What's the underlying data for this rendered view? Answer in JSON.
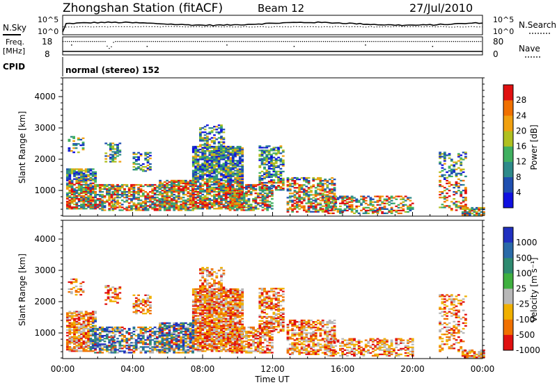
{
  "header": {
    "title": "Zhongshan Station (fitACF)",
    "beam": "Beam 12",
    "date": "27/Jul/2010"
  },
  "top_panels": {
    "nsky_label": "N.Sky",
    "nsearch_label": "N.Search",
    "nsky_ticks": [
      "10^5",
      "10^0"
    ],
    "nsearch_ticks": [
      "10^5",
      "10^0"
    ],
    "freq_label_1": "Freq.",
    "freq_label_2": "[MHz]",
    "freq_ticks": [
      "18",
      "8"
    ],
    "nave_label": "Nave",
    "nave_ticks": [
      "80",
      "0"
    ],
    "cpid_label": "CPID",
    "cpid_text": "normal (stereo) 152"
  },
  "chart_data": [
    {
      "type": "heatmap",
      "name": "power",
      "ylabel": "Slant Range [km]",
      "yticks": [
        1000,
        2000,
        3000,
        4000
      ],
      "ylim": [
        180,
        4600
      ],
      "colorbar_label": "Power [dB]",
      "colorbar_ticks": [
        "4",
        "8",
        "12",
        "16",
        "20",
        "24",
        "28"
      ],
      "colors": [
        "#1010e0",
        "#1f4fb0",
        "#2e8a8a",
        "#40b060",
        "#b0c020",
        "#f0a010",
        "#f07000",
        "#e01010"
      ]
    },
    {
      "type": "heatmap",
      "name": "velocity",
      "ylabel": "Slant Range [km]",
      "yticks": [
        1000,
        2000,
        3000,
        4000
      ],
      "ylim": [
        180,
        4600
      ],
      "colorbar_label": "Velocity [m s⁻¹]",
      "colorbar_ticks": [
        "1000",
        "500",
        "100",
        "25",
        "-25",
        "-100",
        "-500",
        "-1000"
      ],
      "colors": [
        "#2030c0",
        "#2a6aa8",
        "#2e8a70",
        "#40b040",
        "#b8b8b8",
        "#f0b000",
        "#f07000",
        "#e01010"
      ]
    }
  ],
  "x_axis": {
    "ticks": [
      "00:00",
      "04:00",
      "08:00",
      "12:00",
      "16:00",
      "20:00",
      "00:00"
    ],
    "xlabel": "Time UT"
  }
}
